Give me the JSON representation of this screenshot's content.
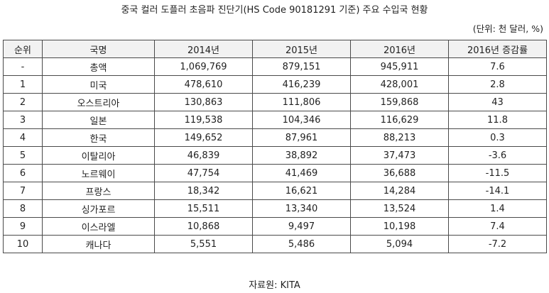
{
  "title": "중국 컬러 도플러 초음파 진단기(HS Code 90181291 기준) 주요 수입국 현황",
  "unit": "(단위: 천 달러, %)",
  "table": {
    "headers": [
      "순위",
      "국명",
      "2014년",
      "2015년",
      "2016년",
      "2016년 증감률"
    ],
    "rows": [
      [
        "-",
        "총액",
        "1,069,769",
        "879,151",
        "945,911",
        "7.6"
      ],
      [
        "1",
        "미국",
        "478,610",
        "416,239",
        "428,001",
        "2.8"
      ],
      [
        "2",
        "오스트리아",
        "130,863",
        "111,806",
        "159,868",
        "43"
      ],
      [
        "3",
        "일본",
        "119,538",
        "104,346",
        "116,629",
        "11.8"
      ],
      [
        "4",
        "한국",
        "149,652",
        "87,961",
        "88,213",
        "0.3"
      ],
      [
        "5",
        "이탈리아",
        "46,839",
        "38,892",
        "37,473",
        "-3.6"
      ],
      [
        "6",
        "노르웨이",
        "47,754",
        "41,469",
        "36,688",
        "-11.5"
      ],
      [
        "7",
        "프랑스",
        "18,342",
        "16,621",
        "14,284",
        "-14.1"
      ],
      [
        "8",
        "싱가포르",
        "15,511",
        "13,340",
        "13,524",
        "1.4"
      ],
      [
        "9",
        "이스라엘",
        "10,868",
        "9,497",
        "10,198",
        "7.4"
      ],
      [
        "10",
        "캐나다",
        "5,551",
        "5,486",
        "5,094",
        "-7.2"
      ]
    ]
  },
  "source": "자료원: KITA"
}
